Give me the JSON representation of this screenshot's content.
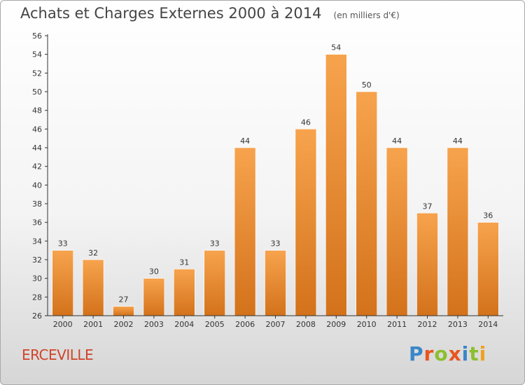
{
  "header": {
    "title": "Achats et Charges Externes 2000 à 2014",
    "subtitle": "(en milliers d'€)"
  },
  "footer": {
    "city": "ERCEVILLE",
    "brand": "Proxiti"
  },
  "colors": {
    "bar_light": "#f7a34d",
    "bar_dark": "#d3721b",
    "axis": "#333333",
    "grid": "#dddddd",
    "city": "#d0442a",
    "brand_letters": [
      "#3a86c8",
      "#e8561f",
      "#8cbf2e",
      "#e8561f",
      "#3a86c8",
      "#8cbf2e",
      "#f0a020"
    ]
  },
  "chart_data": {
    "type": "bar",
    "title": "Achats et Charges Externes 2000 à 2014",
    "subtitle": "(en milliers d'€)",
    "categories": [
      "2000",
      "2001",
      "2002",
      "2003",
      "2004",
      "2005",
      "2006",
      "2007",
      "2008",
      "2009",
      "2010",
      "2011",
      "2012",
      "2013",
      "2014"
    ],
    "values": [
      33,
      32,
      27,
      30,
      31,
      33,
      44,
      33,
      46,
      54,
      50,
      44,
      37,
      44,
      36
    ],
    "data_labels": [
      "33",
      "32",
      "27",
      "30",
      "31",
      "33",
      "44",
      "33",
      "46",
      "54",
      "50",
      "44",
      "37",
      "44",
      "36"
    ],
    "ylim": [
      26,
      56
    ],
    "yticks": [
      26,
      28,
      30,
      32,
      34,
      36,
      38,
      40,
      42,
      44,
      46,
      48,
      50,
      52,
      54,
      56
    ],
    "xlabel": "",
    "ylabel": "",
    "grid": false,
    "legend": "none"
  }
}
